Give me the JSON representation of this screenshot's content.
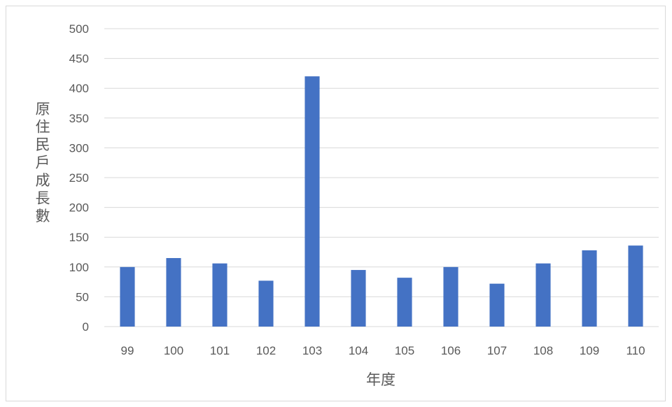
{
  "chart_data": {
    "type": "bar",
    "title": "",
    "xlabel": "年度",
    "ylabel": "原住民戶成長數",
    "categories": [
      "99",
      "100",
      "101",
      "102",
      "103",
      "104",
      "105",
      "106",
      "107",
      "108",
      "109",
      "110"
    ],
    "values": [
      100,
      115,
      106,
      77,
      420,
      95,
      82,
      100,
      72,
      106,
      128,
      136
    ],
    "ylim": [
      0,
      500
    ],
    "yticks": [
      0,
      50,
      100,
      150,
      200,
      250,
      300,
      350,
      400,
      450,
      500
    ],
    "grid": true,
    "legend": "none",
    "bar_color": "#4472c4",
    "grid_color": "#d9d9d9"
  }
}
